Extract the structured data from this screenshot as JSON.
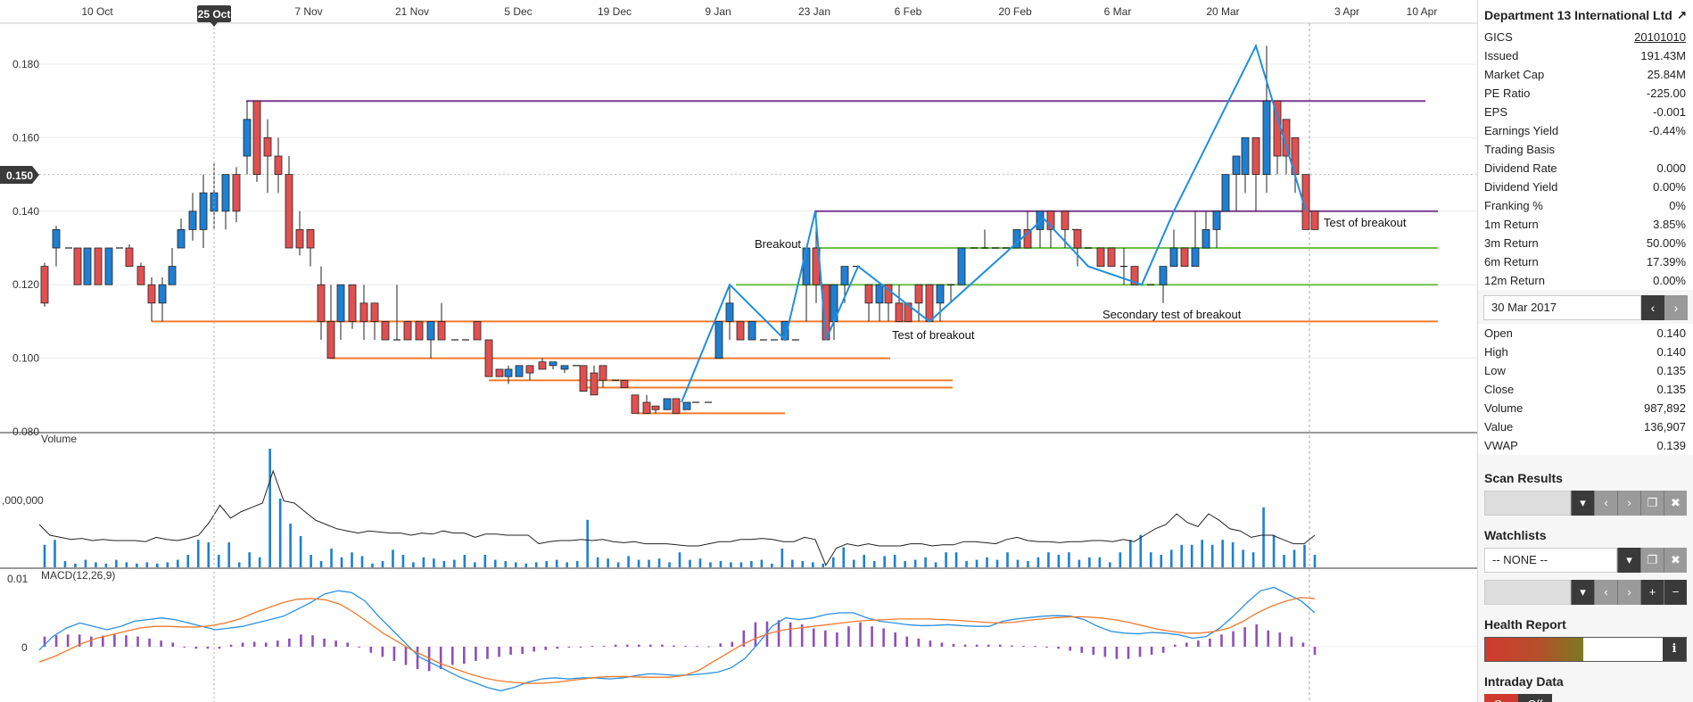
{
  "x_axis_labels": [
    "10 Oct",
    "25 Oct",
    "7 Nov",
    "21 Nov",
    "5 Dec",
    "19 Dec",
    "9 Jan",
    "23 Jan",
    "6 Feb",
    "20 Feb",
    "6 Mar",
    "20 Mar",
    "3 Apr",
    "10 Apr"
  ],
  "crosshair_date": "25 Oct",
  "crosshair_price": "0.150",
  "price_axis": [
    "0.180",
    "0.160",
    "0.140",
    "0.120",
    "0.100",
    "0.080"
  ],
  "volume_label": "Volume",
  "volume_axis_label": ",000,000",
  "macd_label": "MACD(12,26,9)",
  "macd_axis": [
    "0.01",
    "0"
  ],
  "annotations": {
    "breakout": "Breakout",
    "test_of_breakout_1": "Test of breakout",
    "secondary_test": "Secondary test of breakout",
    "test_of_breakout_2": "Test of breakout"
  },
  "chart_data": {
    "type": "candlestick",
    "ylim": [
      0.08,
      0.185
    ],
    "colors": {
      "up": "#1f7fd1",
      "down": "#e05050",
      "trend": "#1f8fe0",
      "purple": "#7a3b8f",
      "green": "#6cc04a",
      "orange": "#f07a2e",
      "macd_hist": "#8e4fb8",
      "macd_line": "#2b8fe0",
      "signal_line": "#f07a2e"
    },
    "horizontal_levels": [
      {
        "color": "purple",
        "price": 0.17
      },
      {
        "color": "purple",
        "price": 0.14
      },
      {
        "color": "green",
        "price": 0.13
      },
      {
        "color": "green",
        "price": 0.12
      },
      {
        "color": "orange",
        "price": 0.11
      },
      {
        "color": "orange",
        "price": 0.1
      },
      {
        "color": "orange",
        "price": 0.094
      },
      {
        "color": "orange",
        "price": 0.092
      },
      {
        "color": "orange",
        "price": 0.085
      }
    ]
  },
  "sidebar": {
    "company": "Department 13 International Ltd",
    "stats": [
      {
        "k": "GICS",
        "v": "20101010",
        "u": true
      },
      {
        "k": "Issued",
        "v": "191.43M"
      },
      {
        "k": "Market Cap",
        "v": "25.84M"
      },
      {
        "k": "PE Ratio",
        "v": "-225.00"
      },
      {
        "k": "EPS",
        "v": "-0.001"
      },
      {
        "k": "Earnings Yield",
        "v": "-0.44%"
      },
      {
        "k": "Trading Basis",
        "v": ""
      },
      {
        "k": "Dividend Rate",
        "v": "0.000"
      },
      {
        "k": "Dividend Yield",
        "v": "0.00%"
      },
      {
        "k": "Franking %",
        "v": "0%"
      },
      {
        "k": "1m Return",
        "v": "3.85%"
      },
      {
        "k": "3m Return",
        "v": "50.00%"
      },
      {
        "k": "6m Return",
        "v": "17.39%"
      },
      {
        "k": "12m Return",
        "v": "0.00%"
      }
    ],
    "date": "30 Mar 2017",
    "ohlc": [
      {
        "k": "Open",
        "v": "0.140"
      },
      {
        "k": "High",
        "v": "0.140"
      },
      {
        "k": "Low",
        "v": "0.135"
      },
      {
        "k": "Close",
        "v": "0.135"
      },
      {
        "k": "Volume",
        "v": "987,892"
      },
      {
        "k": "Value",
        "v": "136,907"
      },
      {
        "k": "VWAP",
        "v": "0.139"
      }
    ],
    "scan_results": "Scan Results",
    "watchlists": "Watchlists",
    "watchlist_value": "-- NONE --",
    "health_report": "Health Report",
    "intraday": "Intraday Data",
    "on": "On",
    "off": "Off"
  }
}
